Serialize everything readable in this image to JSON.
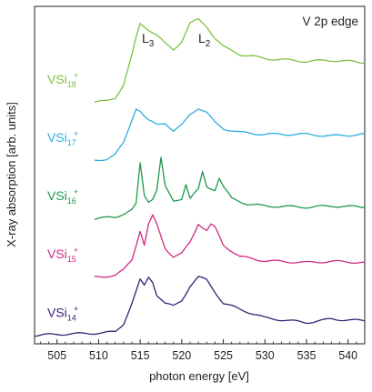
{
  "chart_data": {
    "type": "line",
    "title": "V 2p edge",
    "xlabel": "photon energy [eV]",
    "ylabel": "X-ray absorption [arb. units]",
    "xlim": [
      502.3,
      542.0
    ],
    "x_ticks": [
      505,
      510,
      515,
      520,
      525,
      530,
      535,
      540
    ],
    "y_ticks_labeled": false,
    "grid": false,
    "legend": "labels placed beside each curve at left",
    "annotations": [
      {
        "text": "L",
        "sub": "3",
        "x": 516.0
      },
      {
        "text": "L",
        "sub": "2",
        "x": 522.3
      }
    ],
    "series": [
      {
        "name": "VSi18+",
        "label_main": "VSi",
        "label_sub": "18",
        "label_sup": "+",
        "color": "#7dc242",
        "offset": 4.0,
        "x": [
          509.5,
          511,
          512,
          513,
          514,
          514.5,
          515,
          515.5,
          516,
          517,
          518,
          519,
          520,
          521,
          522,
          523,
          524,
          525,
          527,
          530,
          535,
          538,
          542
        ],
        "y": [
          0.0,
          0.02,
          0.08,
          0.3,
          0.8,
          1.1,
          1.35,
          1.3,
          1.25,
          1.15,
          1.0,
          0.9,
          1.05,
          1.35,
          1.42,
          1.3,
          1.1,
          0.95,
          0.82,
          0.75,
          0.7,
          0.72,
          0.68
        ]
      },
      {
        "name": "VSi17+",
        "label_main": "VSi",
        "label_sub": "17",
        "label_sup": "+",
        "color": "#2aaee0",
        "offset": 3.0,
        "x": [
          509.5,
          511,
          512,
          513,
          513.5,
          514,
          514.5,
          515,
          515.5,
          516,
          517,
          518,
          519,
          520,
          521,
          522,
          523,
          524,
          525,
          527,
          530,
          535,
          538,
          542
        ],
        "y": [
          0.0,
          0.03,
          0.1,
          0.3,
          0.5,
          0.7,
          0.9,
          0.85,
          0.75,
          0.68,
          0.62,
          0.65,
          0.5,
          0.6,
          0.8,
          0.9,
          0.82,
          0.65,
          0.55,
          0.48,
          0.45,
          0.45,
          0.42,
          0.45
        ]
      },
      {
        "name": "VSi16+",
        "label_main": "VSi",
        "label_sub": "16",
        "label_sup": "+",
        "color": "#1d9a4a",
        "offset": 2.0,
        "x": [
          509.5,
          512,
          514,
          514.5,
          515,
          515.5,
          516,
          516.5,
          517,
          517.5,
          518,
          519,
          520,
          520.5,
          521,
          522,
          522.5,
          523,
          524,
          524.5,
          525,
          526,
          528,
          530,
          535,
          538,
          542
        ],
        "y": [
          0.0,
          0.03,
          0.15,
          0.25,
          0.95,
          0.4,
          0.3,
          0.35,
          0.5,
          1.05,
          0.55,
          0.3,
          0.35,
          0.6,
          0.35,
          0.5,
          0.8,
          0.55,
          0.5,
          0.7,
          0.55,
          0.35,
          0.25,
          0.22,
          0.2,
          0.22,
          0.2
        ]
      },
      {
        "name": "VSi15+",
        "label_main": "VSi",
        "label_sub": "15",
        "label_sup": "+",
        "color": "#d12a83",
        "offset": 1.0,
        "x": [
          509.5,
          512,
          513,
          514,
          514.5,
          515,
          515.5,
          516,
          516.5,
          517,
          518,
          519,
          520,
          521,
          522,
          523,
          523.5,
          524,
          525,
          526,
          527,
          530,
          535,
          538,
          542
        ],
        "y": [
          0.0,
          0.03,
          0.12,
          0.3,
          0.55,
          0.8,
          0.55,
          0.9,
          1.05,
          0.9,
          0.5,
          0.35,
          0.4,
          0.6,
          0.92,
          0.8,
          0.9,
          0.85,
          0.55,
          0.45,
          0.35,
          0.28,
          0.25,
          0.27,
          0.25
        ]
      },
      {
        "name": "VSi14+",
        "label_main": "VSi",
        "label_sub": "14",
        "label_sup": "+",
        "color": "#3b1f73",
        "offset": 0.0,
        "x": [
          502.3,
          505,
          508,
          510,
          512,
          513,
          514,
          515,
          515.5,
          516,
          516.5,
          517,
          518,
          519,
          520,
          521,
          522,
          523,
          524,
          525,
          527,
          530,
          535,
          538,
          542
        ],
        "y": [
          0.0,
          0.02,
          0.03,
          0.04,
          0.06,
          0.2,
          0.55,
          0.95,
          0.85,
          1.0,
          0.92,
          0.7,
          0.55,
          0.5,
          0.6,
          0.85,
          1.0,
          0.95,
          0.75,
          0.55,
          0.45,
          0.3,
          0.22,
          0.28,
          0.25
        ]
      }
    ]
  }
}
